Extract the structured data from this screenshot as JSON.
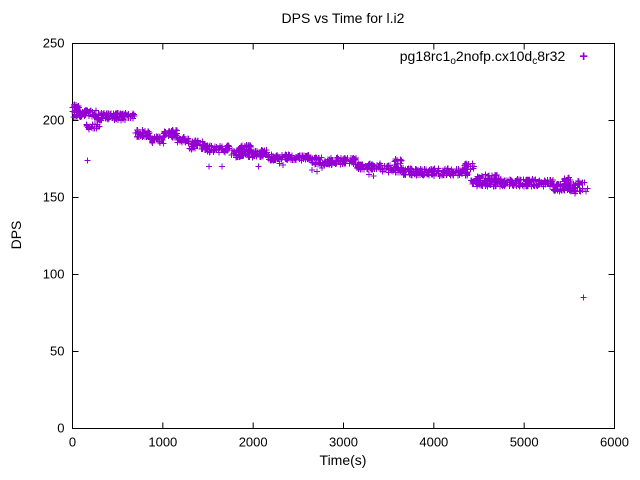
{
  "title": "DPS vs Time for l.i2",
  "legend": {
    "parts": [
      {
        "text": "pg18rc1"
      },
      {
        "text": "o",
        "sub": true
      },
      {
        "text": "2nofp.cx10d"
      },
      {
        "text": "c",
        "sub": true
      },
      {
        "text": "8r32"
      }
    ],
    "marker": "+"
  },
  "chart_data": {
    "type": "scatter",
    "title": "DPS vs Time for l.i2",
    "xlabel": "Time(s)",
    "ylabel": "DPS",
    "xlim": [
      0,
      6000
    ],
    "ylim": [
      0,
      250
    ],
    "xticks": [
      0,
      1000,
      2000,
      3000,
      4000,
      5000,
      6000
    ],
    "yticks": [
      0,
      50,
      100,
      150,
      200,
      250
    ],
    "grid": false,
    "legend_label": "pg18rc1_o2nofp.cx10d_c8r32",
    "legend_position": "top-right-inside",
    "marker": "plus",
    "color": "#9400D3",
    "trend": [
      [
        0,
        206
      ],
      [
        500,
        203
      ],
      [
        750,
        192
      ],
      [
        950,
        187
      ],
      [
        1080,
        191
      ],
      [
        1250,
        187
      ],
      [
        1400,
        184
      ],
      [
        1600,
        182
      ],
      [
        1900,
        180
      ],
      [
        2400,
        176
      ],
      [
        2900,
        173
      ],
      [
        3300,
        170
      ],
      [
        3550,
        169
      ],
      [
        4000,
        166
      ],
      [
        4400,
        170
      ],
      [
        4800,
        160
      ],
      [
        5200,
        159
      ],
      [
        5450,
        156
      ],
      [
        5650,
        157
      ]
    ],
    "bands": [
      [
        0,
        80,
        206,
        211,
        18
      ],
      [
        0,
        260,
        202,
        207,
        60
      ],
      [
        130,
        300,
        194,
        198,
        18
      ],
      [
        260,
        690,
        200,
        205,
        100
      ],
      [
        690,
        860,
        189,
        194,
        40
      ],
      [
        860,
        1010,
        185,
        190,
        32
      ],
      [
        1010,
        1160,
        189,
        194,
        45
      ],
      [
        1160,
        1290,
        185,
        190,
        28
      ],
      [
        1290,
        1460,
        181,
        187,
        36
      ],
      [
        1460,
        1740,
        179,
        184,
        55
      ],
      [
        1740,
        2160,
        176,
        181,
        90
      ],
      [
        1840,
        1980,
        180,
        184,
        30
      ],
      [
        2160,
        2640,
        174,
        178,
        100
      ],
      [
        2640,
        3140,
        171,
        176,
        105
      ],
      [
        3140,
        3420,
        168,
        172,
        60
      ],
      [
        3420,
        3660,
        166,
        171,
        40
      ],
      [
        3560,
        3640,
        171,
        175,
        12
      ],
      [
        3660,
        4380,
        164,
        169,
        150
      ],
      [
        4340,
        4450,
        168,
        172,
        16
      ],
      [
        4400,
        5320,
        157,
        162,
        200
      ],
      [
        4480,
        4720,
        162,
        165,
        18
      ],
      [
        5320,
        5560,
        154,
        159,
        60
      ],
      [
        5400,
        5520,
        159,
        163,
        14
      ],
      [
        5560,
        5700,
        152,
        161,
        18
      ]
    ],
    "sparse_points": [
      [
        1510,
        170
      ],
      [
        1655,
        170
      ],
      [
        2060,
        170
      ],
      [
        2290,
        172
      ],
      [
        2330,
        171
      ],
      [
        2650,
        168
      ],
      [
        2705,
        167
      ],
      [
        2760,
        169
      ],
      [
        3280,
        165
      ],
      [
        3330,
        164
      ],
      [
        4510,
        163
      ],
      [
        4600,
        164
      ]
    ],
    "outliers": [
      [
        165,
        174
      ],
      [
        5655,
        85
      ]
    ]
  }
}
